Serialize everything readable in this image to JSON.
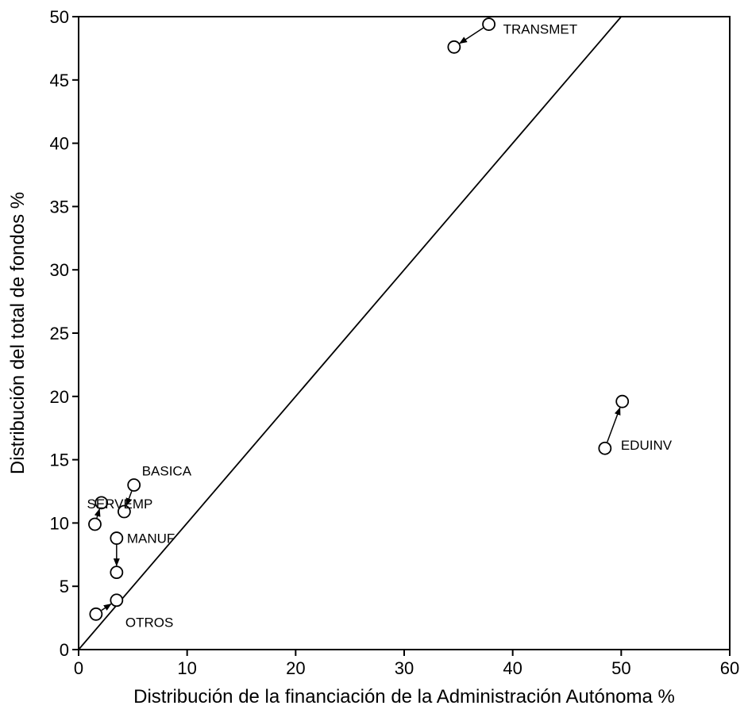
{
  "chart_data": {
    "type": "scatter",
    "title": "",
    "xlabel": "Distribución de la financiación de la Administración Autónoma %",
    "ylabel": "Distribución del total de fondos %",
    "xlim": [
      0,
      60
    ],
    "ylim": [
      0,
      50
    ],
    "xticks": [
      0,
      10,
      20,
      30,
      40,
      50,
      60
    ],
    "yticks": [
      0,
      5,
      10,
      15,
      20,
      25,
      30,
      35,
      40,
      45,
      50
    ],
    "grid": false,
    "reference_line": {
      "from": [
        0,
        0
      ],
      "to": [
        50,
        50
      ]
    },
    "points": [
      {
        "label": "TRANSMET",
        "from": {
          "x": 37.8,
          "y": 49.4
        },
        "to": {
          "x": 34.6,
          "y": 47.6
        }
      },
      {
        "label": "EDUINV",
        "from": {
          "x": 48.5,
          "y": 15.9
        },
        "to": {
          "x": 50.1,
          "y": 19.6
        }
      },
      {
        "label": "BASICA",
        "from": {
          "x": 5.1,
          "y": 13.0
        },
        "to": {
          "x": 4.2,
          "y": 10.9
        }
      },
      {
        "label": "SERVEMP",
        "from": {
          "x": 1.5,
          "y": 9.9
        },
        "to": {
          "x": 2.1,
          "y": 11.6
        }
      },
      {
        "label": "MANUF",
        "from": {
          "x": 3.5,
          "y": 8.8
        },
        "to": {
          "x": 3.5,
          "y": 6.1
        }
      },
      {
        "label": "OTROS",
        "from": {
          "x": 1.6,
          "y": 2.8
        },
        "to": {
          "x": 3.5,
          "y": 3.9
        }
      }
    ]
  }
}
